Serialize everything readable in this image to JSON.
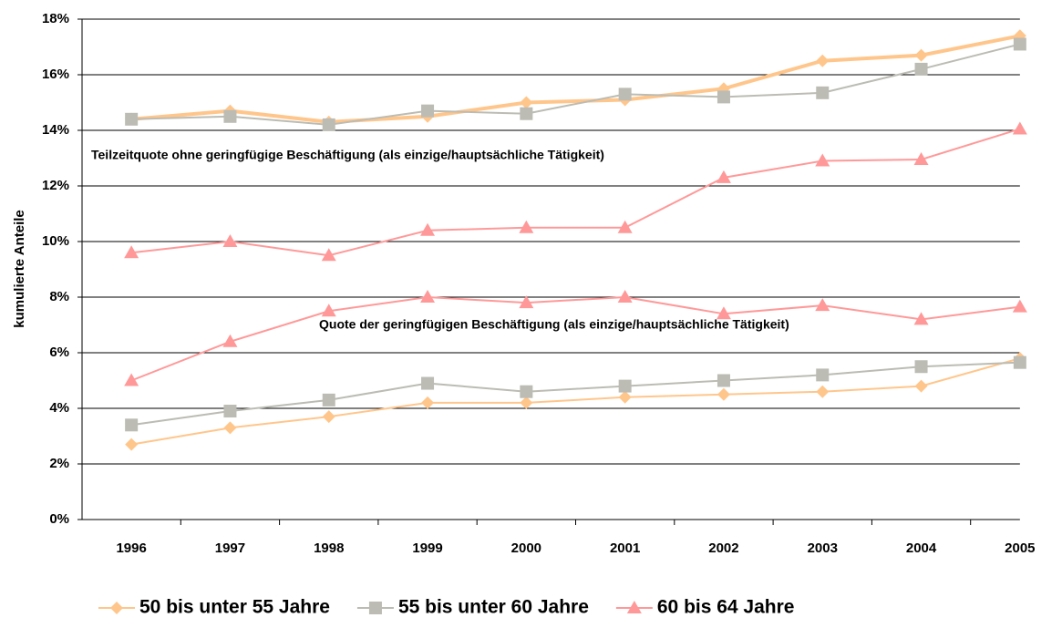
{
  "chart_data": {
    "type": "line",
    "y_label": "kumulierte Anteile",
    "categories": [
      "1996",
      "1997",
      "1998",
      "1999",
      "2000",
      "2001",
      "2002",
      "2003",
      "2004",
      "2005"
    ],
    "ylim": [
      0,
      18
    ],
    "yticks": [
      {
        "value": 0,
        "label": "0%"
      },
      {
        "value": 2,
        "label": "2%"
      },
      {
        "value": 4,
        "label": "4%"
      },
      {
        "value": 6,
        "label": "6%"
      },
      {
        "value": 8,
        "label": "8%"
      },
      {
        "value": 10,
        "label": "10%"
      },
      {
        "value": 12,
        "label": "12%"
      },
      {
        "value": 14,
        "label": "14%"
      },
      {
        "value": 16,
        "label": "16%"
      },
      {
        "value": 18,
        "label": "18%"
      }
    ],
    "grid": true,
    "annotations": [
      "Teilzeitquote ohne geringfügige Beschäftigung (als einzige/hauptsächliche Tätigkeit)",
      "Quote der geringfügigen Beschäftigung (als einzige/hauptsächliche Tätigkeit)"
    ],
    "series": [
      {
        "name": "50 bis unter 55 Jahre",
        "color": "#ffc68c",
        "marker": "diamond",
        "values": [
          14.4,
          14.7,
          14.3,
          14.5,
          15.0,
          15.1,
          15.5,
          16.5,
          16.7,
          17.4
        ]
      },
      {
        "name": "55 bis unter 60 Jahre",
        "color": "#bcbcb4",
        "marker": "square",
        "values": [
          14.4,
          14.5,
          14.2,
          14.7,
          14.6,
          15.3,
          15.2,
          15.35,
          16.2,
          17.1
        ]
      },
      {
        "name": "60 bis 64 Jahre",
        "color": "#ff9999",
        "marker": "triangle",
        "values": [
          9.6,
          10.0,
          9.5,
          10.4,
          10.5,
          10.5,
          12.3,
          12.9,
          12.95,
          14.05
        ]
      }
    ],
    "lower_series": [
      {
        "color": "#ffc68c",
        "marker": "diamond",
        "values": [
          2.7,
          3.3,
          3.7,
          4.2,
          4.2,
          4.4,
          4.5,
          4.6,
          4.8,
          5.8
        ]
      },
      {
        "color": "#bcbcb4",
        "marker": "square",
        "values": [
          3.4,
          3.9,
          4.3,
          4.9,
          4.6,
          4.8,
          5.0,
          5.2,
          5.5,
          5.65
        ]
      },
      {
        "color": "#ff9999",
        "marker": "triangle",
        "values": [
          5.0,
          6.4,
          7.5,
          8.0,
          7.8,
          8.0,
          7.4,
          7.7,
          7.2,
          7.65
        ]
      }
    ]
  }
}
